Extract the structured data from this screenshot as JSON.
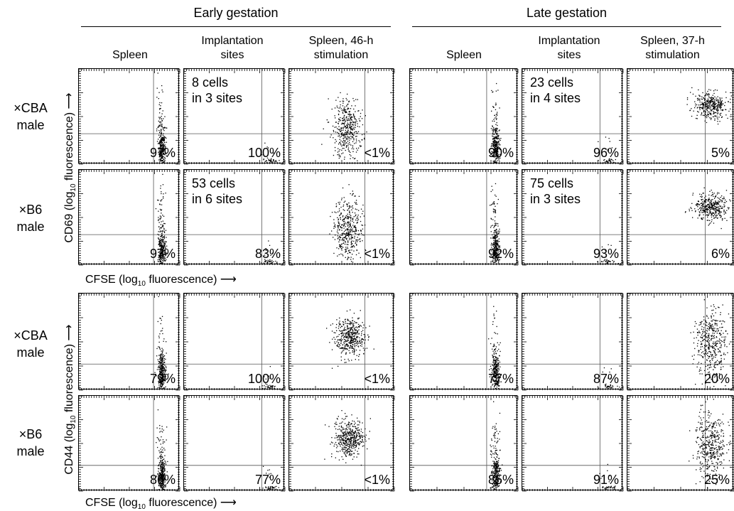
{
  "groups": [
    {
      "title": "Early gestation",
      "columns": [
        "Spleen",
        "Implantation\nsites",
        "Spleen, 46-h\nstimulation"
      ]
    },
    {
      "title": "Late gestation",
      "columns": [
        "Spleen",
        "Implantation\nsites",
        "Spleen, 37-h\nstimulation"
      ]
    }
  ],
  "row_labels": [
    "×CBA\nmale",
    "×B6\nmale",
    "×CBA\nmale",
    "×B6\nmale"
  ],
  "axes": {
    "cd69_y": {
      "pre": "CD69 (log",
      "sub": "10",
      "post": " fluorescence)"
    },
    "cd44_y": {
      "pre": "CD44 (log",
      "sub": "10",
      "post": " fluorescence)"
    },
    "cfse_x": {
      "pre": "CFSE (log",
      "sub": "10",
      "post": " fluorescence)"
    }
  },
  "panels": [
    [
      {
        "pct": "97%",
        "note": ""
      },
      {
        "pct": "100%",
        "note": "8 cells\nin 3 sites"
      },
      {
        "pct": "<1%",
        "note": ""
      },
      {
        "pct": "90%",
        "note": ""
      },
      {
        "pct": "96%",
        "note": "23 cells\nin 4 sites"
      },
      {
        "pct": "5%",
        "note": ""
      }
    ],
    [
      {
        "pct": "97%",
        "note": ""
      },
      {
        "pct": "83%",
        "note": "53 cells\nin 6 sites"
      },
      {
        "pct": "<1%",
        "note": ""
      },
      {
        "pct": "92%",
        "note": ""
      },
      {
        "pct": "93%",
        "note": "75 cells\nin 3 sites"
      },
      {
        "pct": "6%",
        "note": ""
      }
    ],
    [
      {
        "pct": "79%",
        "note": ""
      },
      {
        "pct": "100%",
        "note": ""
      },
      {
        "pct": "<1%",
        "note": ""
      },
      {
        "pct": "77%",
        "note": ""
      },
      {
        "pct": "87%",
        "note": ""
      },
      {
        "pct": "20%",
        "note": ""
      }
    ],
    [
      {
        "pct": "86%",
        "note": ""
      },
      {
        "pct": "77%",
        "note": ""
      },
      {
        "pct": "<1%",
        "note": ""
      },
      {
        "pct": "85%",
        "note": ""
      },
      {
        "pct": "91%",
        "note": ""
      },
      {
        "pct": "25%",
        "note": ""
      }
    ]
  ]
}
